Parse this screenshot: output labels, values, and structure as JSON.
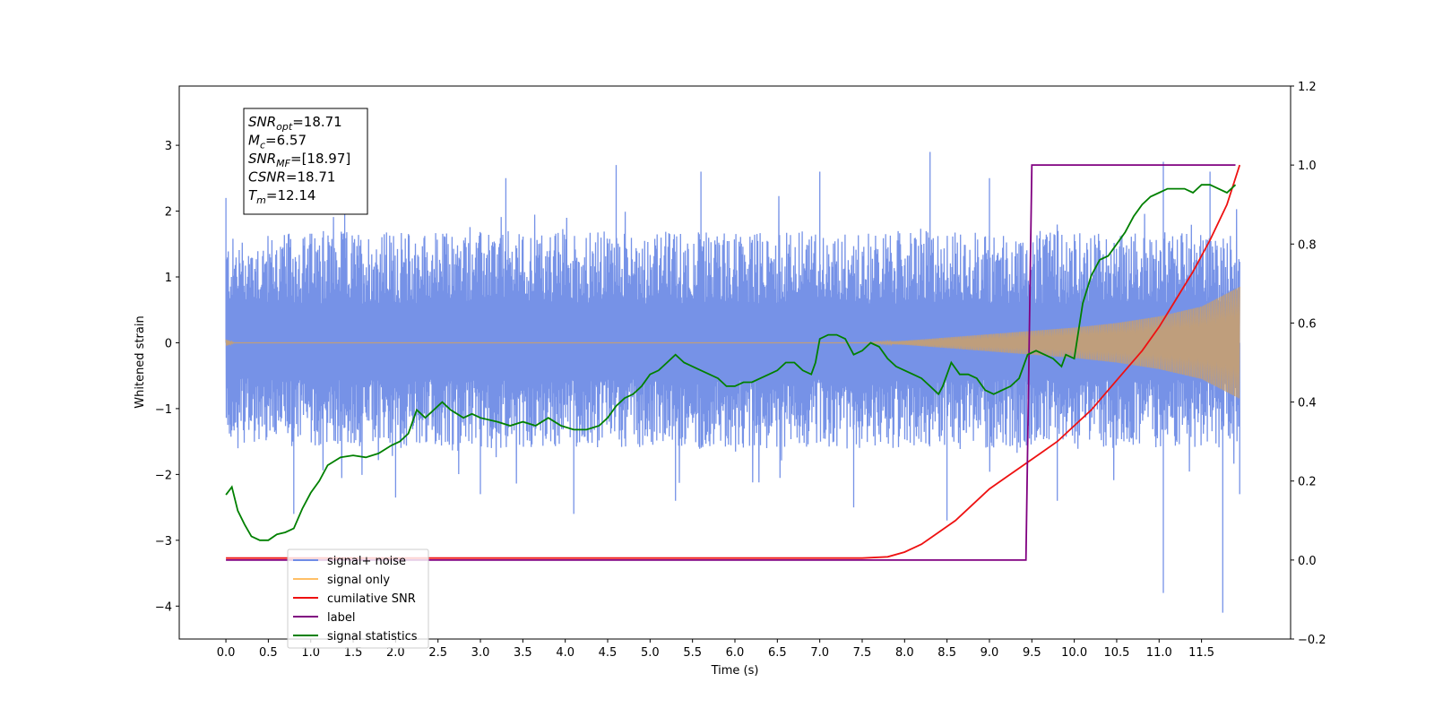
{
  "chart_data": {
    "type": "line",
    "xlabel": "Time (s)",
    "ylabel_left": "Whitened strain",
    "ylabel_right": "",
    "xlim": [
      -0.55,
      12.55
    ],
    "ylim_left": [
      -4.5,
      3.9
    ],
    "ylim_right": [
      -0.2,
      1.2
    ],
    "x_ticks": [
      "0.0",
      "0.5",
      "1.0",
      "1.5",
      "2.0",
      "2.5",
      "3.0",
      "3.5",
      "4.0",
      "4.5",
      "5.0",
      "5.5",
      "6.0",
      "6.5",
      "7.0",
      "7.5",
      "8.0",
      "8.5",
      "9.0",
      "9.5",
      "10.0",
      "10.5",
      "11.0",
      "11.5"
    ],
    "y_ticks_left": [
      "−4",
      "−3",
      "−2",
      "−1",
      "0",
      "1",
      "2",
      "3"
    ],
    "y_ticks_right": [
      "−0.2",
      "0.0",
      "0.2",
      "0.4",
      "0.6",
      "0.8",
      "1.0",
      "1.2"
    ],
    "grid": false,
    "legend_position": "lower-left",
    "info_box": {
      "lines": [
        {
          "sym": "SNR",
          "sub": "opt",
          "val": "=18.71"
        },
        {
          "sym": "M",
          "sub": "c",
          "val": "=6.57"
        },
        {
          "sym": "SNR",
          "sub": "MF",
          "val": "=[18.97]"
        },
        {
          "sym": "CSNR",
          "sub": "",
          "val": "=18.71"
        },
        {
          "sym": "T",
          "sub": "m",
          "val": "=12.14"
        }
      ]
    },
    "series": [
      {
        "name": "signal+ noise",
        "axis": "left",
        "color": "#6f8ce6",
        "x_range": [
          0.0,
          11.95
        ],
        "envelope_upper": [
          [
            0.0,
            1.6
          ],
          [
            1.0,
            1.7
          ],
          [
            2.0,
            1.7
          ],
          [
            3.0,
            1.7
          ],
          [
            4.0,
            1.7
          ],
          [
            5.0,
            1.7
          ],
          [
            6.0,
            1.7
          ],
          [
            7.0,
            1.7
          ],
          [
            8.0,
            1.7
          ],
          [
            9.0,
            1.7
          ],
          [
            10.0,
            1.7
          ],
          [
            11.0,
            1.7
          ],
          [
            11.95,
            1.7
          ]
        ],
        "envelope_lower": [
          [
            0.0,
            -1.5
          ],
          [
            1.0,
            -1.6
          ],
          [
            2.0,
            -1.6
          ],
          [
            3.0,
            -1.6
          ],
          [
            4.0,
            -1.6
          ],
          [
            5.0,
            -1.6
          ],
          [
            6.0,
            -1.6
          ],
          [
            7.0,
            -1.6
          ],
          [
            8.0,
            -1.6
          ],
          [
            9.0,
            -1.6
          ],
          [
            10.0,
            -1.6
          ],
          [
            11.0,
            -1.6
          ],
          [
            11.95,
            -1.6
          ]
        ],
        "extremes": [
          [
            0.0,
            2.2
          ],
          [
            1.4,
            2.4
          ],
          [
            3.3,
            2.5
          ],
          [
            4.6,
            2.7
          ],
          [
            5.6,
            2.6
          ],
          [
            7.0,
            2.6
          ],
          [
            8.3,
            2.9
          ],
          [
            9.0,
            2.5
          ],
          [
            11.05,
            2.75
          ],
          [
            11.6,
            2.6
          ],
          [
            0.8,
            -2.6
          ],
          [
            2.0,
            -2.35
          ],
          [
            3.0,
            -2.3
          ],
          [
            4.1,
            -2.6
          ],
          [
            5.3,
            -2.4
          ],
          [
            7.4,
            -2.5
          ],
          [
            8.5,
            -2.7
          ],
          [
            9.8,
            -2.4
          ],
          [
            11.05,
            -3.8
          ],
          [
            11.75,
            -4.1
          ],
          [
            11.95,
            -2.3
          ]
        ]
      },
      {
        "name": "signal only",
        "axis": "left",
        "color": "#ffbf66",
        "x_range": [
          0.0,
          11.95
        ],
        "envelope": [
          [
            0.0,
            0.05
          ],
          [
            0.1,
            0.0
          ],
          [
            7.5,
            0.0
          ],
          [
            8.0,
            0.03
          ],
          [
            8.5,
            0.08
          ],
          [
            9.0,
            0.13
          ],
          [
            9.5,
            0.18
          ],
          [
            10.0,
            0.23
          ],
          [
            10.5,
            0.3
          ],
          [
            11.0,
            0.4
          ],
          [
            11.5,
            0.55
          ],
          [
            11.95,
            0.85
          ]
        ]
      },
      {
        "name": "cumilative SNR",
        "axis": "right",
        "color": "#ee1111",
        "points": [
          [
            0.0,
            0.005
          ],
          [
            7.5,
            0.005
          ],
          [
            7.8,
            0.008
          ],
          [
            8.0,
            0.02
          ],
          [
            8.2,
            0.04
          ],
          [
            8.4,
            0.07
          ],
          [
            8.6,
            0.1
          ],
          [
            8.8,
            0.14
          ],
          [
            9.0,
            0.18
          ],
          [
            9.2,
            0.21
          ],
          [
            9.4,
            0.24
          ],
          [
            9.6,
            0.27
          ],
          [
            9.8,
            0.3
          ],
          [
            10.0,
            0.34
          ],
          [
            10.2,
            0.38
          ],
          [
            10.4,
            0.43
          ],
          [
            10.6,
            0.48
          ],
          [
            10.8,
            0.53
          ],
          [
            11.0,
            0.59
          ],
          [
            11.2,
            0.66
          ],
          [
            11.4,
            0.73
          ],
          [
            11.6,
            0.81
          ],
          [
            11.8,
            0.9
          ],
          [
            11.95,
            1.0
          ]
        ]
      },
      {
        "name": "label",
        "axis": "right",
        "color": "#800080",
        "points": [
          [
            0.0,
            0.0
          ],
          [
            9.43,
            0.0
          ],
          [
            9.5,
            1.0
          ],
          [
            11.9,
            1.0
          ]
        ]
      },
      {
        "name": "signal statistics",
        "axis": "right",
        "color": "#008000",
        "points": [
          [
            0.0,
            0.165
          ],
          [
            0.07,
            0.185
          ],
          [
            0.14,
            0.125
          ],
          [
            0.22,
            0.09
          ],
          [
            0.3,
            0.06
          ],
          [
            0.4,
            0.05
          ],
          [
            0.5,
            0.05
          ],
          [
            0.6,
            0.065
          ],
          [
            0.7,
            0.07
          ],
          [
            0.8,
            0.08
          ],
          [
            0.9,
            0.13
          ],
          [
            1.0,
            0.17
          ],
          [
            1.1,
            0.2
          ],
          [
            1.2,
            0.24
          ],
          [
            1.35,
            0.26
          ],
          [
            1.5,
            0.265
          ],
          [
            1.65,
            0.26
          ],
          [
            1.8,
            0.27
          ],
          [
            1.95,
            0.29
          ],
          [
            2.05,
            0.3
          ],
          [
            2.15,
            0.32
          ],
          [
            2.25,
            0.38
          ],
          [
            2.35,
            0.36
          ],
          [
            2.45,
            0.38
          ],
          [
            2.55,
            0.4
          ],
          [
            2.65,
            0.38
          ],
          [
            2.8,
            0.36
          ],
          [
            2.9,
            0.37
          ],
          [
            3.0,
            0.36
          ],
          [
            3.2,
            0.35
          ],
          [
            3.35,
            0.34
          ],
          [
            3.5,
            0.35
          ],
          [
            3.65,
            0.34
          ],
          [
            3.8,
            0.36
          ],
          [
            3.95,
            0.34
          ],
          [
            4.1,
            0.33
          ],
          [
            4.25,
            0.33
          ],
          [
            4.4,
            0.34
          ],
          [
            4.5,
            0.36
          ],
          [
            4.6,
            0.39
          ],
          [
            4.7,
            0.41
          ],
          [
            4.8,
            0.42
          ],
          [
            4.9,
            0.44
          ],
          [
            5.0,
            0.47
          ],
          [
            5.1,
            0.48
          ],
          [
            5.2,
            0.5
          ],
          [
            5.3,
            0.52
          ],
          [
            5.4,
            0.5
          ],
          [
            5.5,
            0.49
          ],
          [
            5.6,
            0.48
          ],
          [
            5.7,
            0.47
          ],
          [
            5.8,
            0.46
          ],
          [
            5.9,
            0.44
          ],
          [
            6.0,
            0.44
          ],
          [
            6.1,
            0.45
          ],
          [
            6.2,
            0.45
          ],
          [
            6.3,
            0.46
          ],
          [
            6.4,
            0.47
          ],
          [
            6.5,
            0.48
          ],
          [
            6.6,
            0.5
          ],
          [
            6.7,
            0.5
          ],
          [
            6.8,
            0.48
          ],
          [
            6.9,
            0.47
          ],
          [
            6.95,
            0.5
          ],
          [
            7.0,
            0.56
          ],
          [
            7.1,
            0.57
          ],
          [
            7.2,
            0.57
          ],
          [
            7.3,
            0.56
          ],
          [
            7.4,
            0.52
          ],
          [
            7.5,
            0.53
          ],
          [
            7.6,
            0.55
          ],
          [
            7.7,
            0.54
          ],
          [
            7.8,
            0.51
          ],
          [
            7.9,
            0.49
          ],
          [
            8.0,
            0.48
          ],
          [
            8.1,
            0.47
          ],
          [
            8.2,
            0.46
          ],
          [
            8.3,
            0.44
          ],
          [
            8.4,
            0.42
          ],
          [
            8.45,
            0.44
          ],
          [
            8.55,
            0.5
          ],
          [
            8.65,
            0.47
          ],
          [
            8.75,
            0.47
          ],
          [
            8.85,
            0.46
          ],
          [
            8.95,
            0.43
          ],
          [
            9.05,
            0.42
          ],
          [
            9.15,
            0.43
          ],
          [
            9.25,
            0.44
          ],
          [
            9.35,
            0.46
          ],
          [
            9.45,
            0.52
          ],
          [
            9.55,
            0.53
          ],
          [
            9.65,
            0.52
          ],
          [
            9.75,
            0.51
          ],
          [
            9.85,
            0.49
          ],
          [
            9.9,
            0.52
          ],
          [
            10.0,
            0.51
          ],
          [
            10.1,
            0.65
          ],
          [
            10.2,
            0.72
          ],
          [
            10.3,
            0.76
          ],
          [
            10.4,
            0.77
          ],
          [
            10.5,
            0.8
          ],
          [
            10.6,
            0.83
          ],
          [
            10.7,
            0.87
          ],
          [
            10.8,
            0.9
          ],
          [
            10.9,
            0.92
          ],
          [
            11.0,
            0.93
          ],
          [
            11.1,
            0.94
          ],
          [
            11.2,
            0.94
          ],
          [
            11.3,
            0.94
          ],
          [
            11.4,
            0.93
          ],
          [
            11.5,
            0.95
          ],
          [
            11.6,
            0.95
          ],
          [
            11.7,
            0.94
          ],
          [
            11.8,
            0.93
          ],
          [
            11.9,
            0.95
          ]
        ]
      }
    ],
    "legend": [
      {
        "label": "signal+ noise",
        "color": "#6f8ce6"
      },
      {
        "label": "signal only",
        "color": "#ffbf66"
      },
      {
        "label": "cumilative SNR",
        "color": "#ee1111"
      },
      {
        "label": "label",
        "color": "#800080"
      },
      {
        "label": "signal statistics",
        "color": "#008000"
      }
    ]
  }
}
